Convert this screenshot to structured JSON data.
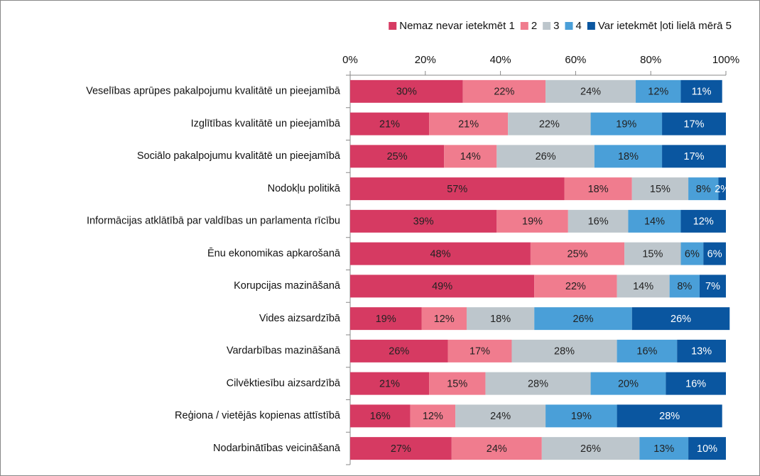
{
  "chart_data": {
    "type": "stacked_bar_horizontal",
    "categories": [
      "Veselības aprūpes pakalpojumu kvalitātē un pieejamībā",
      "Izglītības kvalitātē un pieejamībā",
      "Sociālo pakalpojumu kvalitātē un pieejamībā",
      "Nodokļu politikā",
      "Informācijas atklātībā par valdības un parlamenta rīcību",
      "Ēnu ekonomikas apkarošanā",
      "Korupcijas mazināšanā",
      "Vides aizsardzībā",
      "Vardarbības mazināšanā",
      "Cilvēktiesību aizsardzībā",
      "Reģiona / vietējās kopienas attīstībā",
      "Nodarbinātības veicināšanā"
    ],
    "series": [
      {
        "name": "Nemaz nevar ietekmēt 1",
        "color": "#d63a62",
        "values": [
          30,
          21,
          25,
          57,
          39,
          48,
          49,
          19,
          26,
          21,
          16,
          27
        ],
        "value_labels": [
          "30%",
          "21%",
          "25%",
          "57%",
          "39%",
          "48%",
          "49%",
          "19%",
          "26%",
          "21%",
          "16%",
          "27%"
        ]
      },
      {
        "name": "2",
        "color": "#f07c8e",
        "values": [
          22,
          21,
          14,
          18,
          19,
          25,
          22,
          12,
          17,
          15,
          12,
          24
        ],
        "value_labels": [
          "22%",
          "21%",
          "14%",
          "18%",
          "19%",
          "25%",
          "22%",
          "12%",
          "17%",
          "15%",
          "12%",
          "24%"
        ]
      },
      {
        "name": "3",
        "color": "#bdc6cc",
        "values": [
          24,
          22,
          26,
          15,
          16,
          15,
          14,
          18,
          28,
          28,
          24,
          26
        ],
        "value_labels": [
          "24%",
          "22%",
          "26%",
          "15%",
          "16%",
          "15%",
          "14%",
          "18%",
          "28%",
          "28%",
          "24%",
          "26%"
        ]
      },
      {
        "name": "4",
        "color": "#4a9fd8",
        "values": [
          12,
          19,
          18,
          8,
          14,
          6,
          8,
          26,
          16,
          20,
          19,
          13
        ],
        "value_labels": [
          "12%",
          "19%",
          "18%",
          "8%",
          "14%",
          "6%",
          "8%",
          "26%",
          "16%",
          "20%",
          "19%",
          "13%"
        ]
      },
      {
        "name": "Var ietekmēt ļoti lielā mērā 5",
        "color": "#0a56a0",
        "values": [
          11,
          17,
          17,
          2,
          12,
          6,
          7,
          26,
          13,
          16,
          28,
          10
        ],
        "value_labels": [
          "11%",
          "17%",
          "17%",
          "2%",
          "12%",
          "6%",
          "7%",
          "26%",
          "13%",
          "16%",
          "28%",
          "10%"
        ]
      }
    ],
    "xlim": [
      0,
      100
    ],
    "xticks": [
      {
        "value": 0,
        "label": "0%"
      },
      {
        "value": 20,
        "label": "20%"
      },
      {
        "value": 40,
        "label": "40%"
      },
      {
        "value": 60,
        "label": "60%"
      },
      {
        "value": 80,
        "label": "80%"
      },
      {
        "value": 100,
        "label": "100%"
      }
    ],
    "legend": "top-right"
  }
}
